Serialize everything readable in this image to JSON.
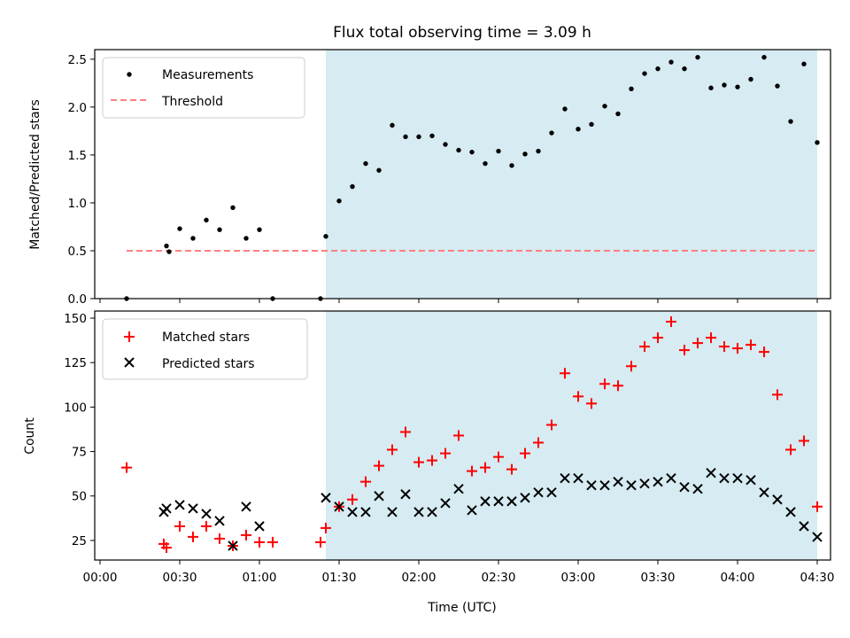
{
  "title": "Flux total observing time = 3.09 h",
  "xlabel": "Time (UTC)",
  "x_ticks": [
    "00:00",
    "00:30",
    "01:00",
    "01:30",
    "02:00",
    "02:30",
    "03:00",
    "03:30",
    "04:00",
    "04:30"
  ],
  "colors": {
    "shade": "#add8e6",
    "measurement": "#000000",
    "threshold": "#ff7f7f",
    "matched": "#ff0000",
    "predicted": "#000000"
  },
  "chart_data": [
    {
      "type": "scatter",
      "ylabel": "Matched/Predicted stars",
      "ylim": [
        0,
        2.6
      ],
      "y_ticks": [
        "0.0",
        "0.5",
        "1.0",
        "1.5",
        "2.0",
        "2.5"
      ],
      "xlim": [
        "23:58",
        "04:35"
      ],
      "shaded_interval": [
        "01:25",
        "04:30"
      ],
      "legend": {
        "placement": "top-left",
        "entries": [
          "Measurements",
          "Threshold"
        ]
      },
      "threshold": {
        "name": "Threshold",
        "value": 0.5,
        "x": [
          "00:10",
          "04:30"
        ]
      },
      "series": [
        {
          "name": "Measurements",
          "points": [
            [
              "00:10",
              0.0
            ],
            [
              "00:25",
              0.55
            ],
            [
              "00:26",
              0.49
            ],
            [
              "00:30",
              0.73
            ],
            [
              "00:35",
              0.63
            ],
            [
              "00:40",
              0.82
            ],
            [
              "00:45",
              0.72
            ],
            [
              "00:50",
              0.95
            ],
            [
              "00:55",
              0.63
            ],
            [
              "01:00",
              0.72
            ],
            [
              "01:05",
              0.0
            ],
            [
              "01:23",
              0.0
            ],
            [
              "01:25",
              0.65
            ],
            [
              "01:30",
              1.02
            ],
            [
              "01:35",
              1.17
            ],
            [
              "01:40",
              1.41
            ],
            [
              "01:45",
              1.34
            ],
            [
              "01:50",
              1.81
            ],
            [
              "01:55",
              1.69
            ],
            [
              "02:00",
              1.69
            ],
            [
              "02:05",
              1.7
            ],
            [
              "02:10",
              1.61
            ],
            [
              "02:15",
              1.55
            ],
            [
              "02:20",
              1.53
            ],
            [
              "02:25",
              1.41
            ],
            [
              "02:30",
              1.54
            ],
            [
              "02:35",
              1.39
            ],
            [
              "02:40",
              1.51
            ],
            [
              "02:45",
              1.54
            ],
            [
              "02:50",
              1.73
            ],
            [
              "02:55",
              1.98
            ],
            [
              "03:00",
              1.77
            ],
            [
              "03:05",
              1.82
            ],
            [
              "03:10",
              2.01
            ],
            [
              "03:15",
              1.93
            ],
            [
              "03:20",
              2.19
            ],
            [
              "03:25",
              2.35
            ],
            [
              "03:30",
              2.4
            ],
            [
              "03:35",
              2.47
            ],
            [
              "03:40",
              2.4
            ],
            [
              "03:45",
              2.52
            ],
            [
              "03:50",
              2.2
            ],
            [
              "03:55",
              2.23
            ],
            [
              "04:00",
              2.21
            ],
            [
              "04:05",
              2.29
            ],
            [
              "04:10",
              2.52
            ],
            [
              "04:15",
              2.22
            ],
            [
              "04:20",
              1.85
            ],
            [
              "04:25",
              2.45
            ],
            [
              "04:30",
              1.63
            ]
          ]
        }
      ]
    },
    {
      "type": "scatter",
      "ylabel": "Count",
      "ylim": [
        14,
        154
      ],
      "y_ticks": [
        "25",
        "50",
        "75",
        "100",
        "125",
        "150"
      ],
      "xlim": [
        "23:58",
        "04:35"
      ],
      "shaded_interval": [
        "01:25",
        "04:30"
      ],
      "legend": {
        "placement": "top-left",
        "entries": [
          "Matched stars",
          "Predicted stars"
        ]
      },
      "series": [
        {
          "name": "Matched stars",
          "marker": "plus",
          "points": [
            [
              "00:10",
              66
            ],
            [
              "00:24",
              23
            ],
            [
              "00:25",
              21
            ],
            [
              "00:30",
              33
            ],
            [
              "00:35",
              27
            ],
            [
              "00:40",
              33
            ],
            [
              "00:45",
              26
            ],
            [
              "00:50",
              22
            ],
            [
              "00:55",
              28
            ],
            [
              "01:00",
              24
            ],
            [
              "01:05",
              24
            ],
            [
              "01:23",
              24
            ],
            [
              "01:25",
              32
            ],
            [
              "01:30",
              44
            ],
            [
              "01:35",
              48
            ],
            [
              "01:40",
              58
            ],
            [
              "01:45",
              67
            ],
            [
              "01:50",
              76
            ],
            [
              "01:55",
              86
            ],
            [
              "02:00",
              69
            ],
            [
              "02:05",
              70
            ],
            [
              "02:10",
              74
            ],
            [
              "02:15",
              84
            ],
            [
              "02:20",
              64
            ],
            [
              "02:25",
              66
            ],
            [
              "02:30",
              72
            ],
            [
              "02:35",
              65
            ],
            [
              "02:40",
              74
            ],
            [
              "02:45",
              80
            ],
            [
              "02:50",
              90
            ],
            [
              "02:55",
              119
            ],
            [
              "03:00",
              106
            ],
            [
              "03:05",
              102
            ],
            [
              "03:10",
              113
            ],
            [
              "03:15",
              112
            ],
            [
              "03:20",
              123
            ],
            [
              "03:25",
              134
            ],
            [
              "03:30",
              139
            ],
            [
              "03:35",
              148
            ],
            [
              "03:40",
              132
            ],
            [
              "03:45",
              136
            ],
            [
              "03:50",
              139
            ],
            [
              "03:55",
              134
            ],
            [
              "04:00",
              133
            ],
            [
              "04:05",
              135
            ],
            [
              "04:10",
              131
            ],
            [
              "04:15",
              107
            ],
            [
              "04:20",
              76
            ],
            [
              "04:25",
              81
            ],
            [
              "04:30",
              44
            ]
          ]
        },
        {
          "name": "Predicted stars",
          "marker": "x",
          "points": [
            [
              "00:24",
              41
            ],
            [
              "00:25",
              43
            ],
            [
              "00:30",
              45
            ],
            [
              "00:35",
              43
            ],
            [
              "00:40",
              40
            ],
            [
              "00:45",
              36
            ],
            [
              "00:50",
              22
            ],
            [
              "00:55",
              44
            ],
            [
              "01:00",
              33
            ],
            [
              "01:25",
              49
            ],
            [
              "01:30",
              44
            ],
            [
              "01:35",
              41
            ],
            [
              "01:40",
              41
            ],
            [
              "01:45",
              50
            ],
            [
              "01:50",
              41
            ],
            [
              "01:55",
              51
            ],
            [
              "02:00",
              41
            ],
            [
              "02:05",
              41
            ],
            [
              "02:10",
              46
            ],
            [
              "02:15",
              54
            ],
            [
              "02:20",
              42
            ],
            [
              "02:25",
              47
            ],
            [
              "02:30",
              47
            ],
            [
              "02:35",
              47
            ],
            [
              "02:40",
              49
            ],
            [
              "02:45",
              52
            ],
            [
              "02:50",
              52
            ],
            [
              "02:55",
              60
            ],
            [
              "03:00",
              60
            ],
            [
              "03:05",
              56
            ],
            [
              "03:10",
              56
            ],
            [
              "03:15",
              58
            ],
            [
              "03:20",
              56
            ],
            [
              "03:25",
              57
            ],
            [
              "03:30",
              58
            ],
            [
              "03:35",
              60
            ],
            [
              "03:40",
              55
            ],
            [
              "03:45",
              54
            ],
            [
              "03:50",
              63
            ],
            [
              "03:55",
              60
            ],
            [
              "04:00",
              60
            ],
            [
              "04:05",
              59
            ],
            [
              "04:10",
              52
            ],
            [
              "04:15",
              48
            ],
            [
              "04:20",
              41
            ],
            [
              "04:25",
              33
            ],
            [
              "04:30",
              27
            ]
          ]
        }
      ]
    }
  ]
}
